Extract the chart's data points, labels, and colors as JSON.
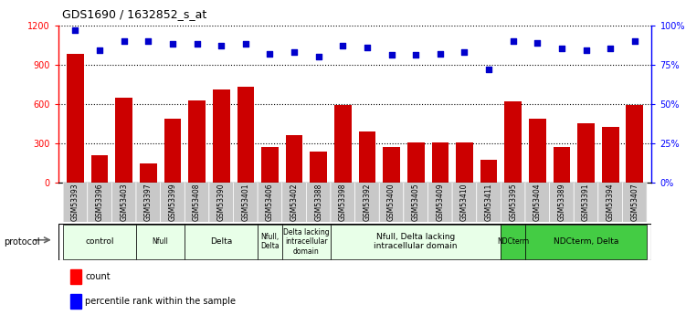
{
  "title": "GDS1690 / 1632852_s_at",
  "samples": [
    "GSM53393",
    "GSM53396",
    "GSM53403",
    "GSM53397",
    "GSM53399",
    "GSM53408",
    "GSM53390",
    "GSM53401",
    "GSM53406",
    "GSM53402",
    "GSM53388",
    "GSM53398",
    "GSM53392",
    "GSM53400",
    "GSM53405",
    "GSM53409",
    "GSM53410",
    "GSM53411",
    "GSM53395",
    "GSM53404",
    "GSM53389",
    "GSM53391",
    "GSM53394",
    "GSM53407"
  ],
  "counts": [
    980,
    210,
    650,
    150,
    490,
    630,
    710,
    730,
    270,
    360,
    240,
    590,
    390,
    270,
    305,
    305,
    305,
    175,
    620,
    490,
    270,
    450,
    425,
    590
  ],
  "percentiles": [
    97,
    84,
    90,
    90,
    88,
    88,
    87,
    88,
    82,
    83,
    80,
    87,
    86,
    81,
    81,
    82,
    83,
    72,
    90,
    89,
    85,
    84,
    85,
    90
  ],
  "bar_color": "#cc0000",
  "dot_color": "#0000cc",
  "protocol_groups": [
    {
      "label": "control",
      "start": 0,
      "end": 2,
      "color": "#e8ffe8"
    },
    {
      "label": "Nfull",
      "start": 3,
      "end": 4,
      "color": "#e8ffe8"
    },
    {
      "label": "Delta",
      "start": 5,
      "end": 7,
      "color": "#e8ffe8"
    },
    {
      "label": "Nfull,\nDelta",
      "start": 8,
      "end": 8,
      "color": "#e8ffe8"
    },
    {
      "label": "Delta lacking\nintracellular\ndomain",
      "start": 9,
      "end": 10,
      "color": "#e8ffe8"
    },
    {
      "label": "Nfull, Delta lacking\nintracellular domain",
      "start": 11,
      "end": 17,
      "color": "#e8ffe8"
    },
    {
      "label": "NDCterm",
      "start": 18,
      "end": 18,
      "color": "#44cc44"
    },
    {
      "label": "NDCterm, Delta",
      "start": 19,
      "end": 23,
      "color": "#44cc44"
    }
  ],
  "ylim_left": [
    0,
    1200
  ],
  "ylim_right": [
    0,
    100
  ],
  "yticks_left": [
    0,
    300,
    600,
    900,
    1200
  ],
  "yticks_right": [
    0,
    25,
    50,
    75,
    100
  ],
  "background_color": "#ffffff",
  "plot_bg_color": "#ffffff",
  "tick_label_bg": "#c8c8c8"
}
